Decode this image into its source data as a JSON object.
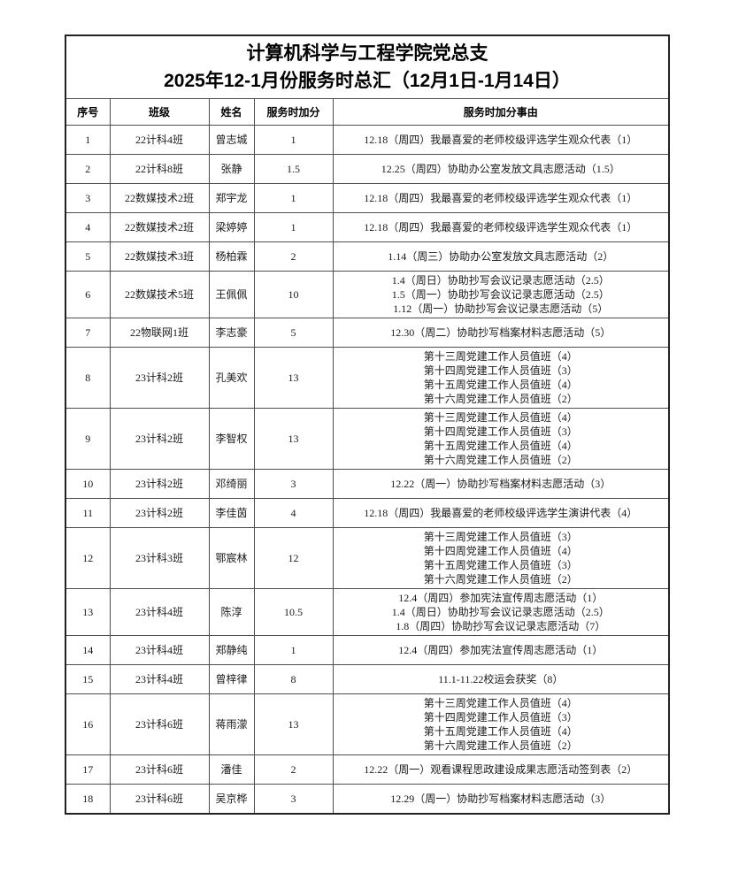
{
  "page": {
    "title_line1": "计算机科学与工程学院党总支",
    "title_line2": "2025年12-1月份服务时总汇（12月1日-1月14日）"
  },
  "table": {
    "headers": [
      "序号",
      "班级",
      "姓名",
      "服务时加分",
      "服务时加分事由"
    ],
    "rows": [
      {
        "no": "1",
        "class": "22计科4班",
        "name": "曾志城",
        "points": "1",
        "reasons": [
          "12.18（周四）我最喜爱的老师校级评选学生观众代表（1）"
        ]
      },
      {
        "no": "2",
        "class": "22计科8班",
        "name": "张静",
        "points": "1.5",
        "reasons": [
          "12.25（周四）协助办公室发放文具志愿活动（1.5）"
        ]
      },
      {
        "no": "3",
        "class": "22数媒技术2班",
        "name": "郑宇龙",
        "points": "1",
        "reasons": [
          "12.18（周四）我最喜爱的老师校级评选学生观众代表（1）"
        ]
      },
      {
        "no": "4",
        "class": "22数媒技术2班",
        "name": "梁婷婷",
        "points": "1",
        "reasons": [
          "12.18（周四）我最喜爱的老师校级评选学生观众代表（1）"
        ]
      },
      {
        "no": "5",
        "class": "22数媒技术3班",
        "name": "杨柏霖",
        "points": "2",
        "reasons": [
          "1.14（周三）协助办公室发放文具志愿活动（2）"
        ]
      },
      {
        "no": "6",
        "class": "22数媒技术5班",
        "name": "王佩佩",
        "points": "10",
        "reasons": [
          "1.4（周日）协助抄写会议记录志愿活动（2.5）",
          "1.5（周一）协助抄写会议记录志愿活动（2.5）",
          "1.12（周一）协助抄写会议记录志愿活动（5）"
        ]
      },
      {
        "no": "7",
        "class": "22物联网1班",
        "name": "李志豪",
        "points": "5",
        "reasons": [
          "12.30（周二）协助抄写档案材料志愿活动（5）"
        ]
      },
      {
        "no": "8",
        "class": "23计科2班",
        "name": "孔美欢",
        "points": "13",
        "reasons": [
          "第十三周党建工作人员值班（4）",
          "第十四周党建工作人员值班（3）",
          "第十五周党建工作人员值班（4）",
          "第十六周党建工作人员值班（2）"
        ]
      },
      {
        "no": "9",
        "class": "23计科2班",
        "name": "李智权",
        "points": "13",
        "reasons": [
          "第十三周党建工作人员值班（4）",
          "第十四周党建工作人员值班（3）",
          "第十五周党建工作人员值班（4）",
          "第十六周党建工作人员值班（2）"
        ]
      },
      {
        "no": "10",
        "class": "23计科2班",
        "name": "邓绮丽",
        "points": "3",
        "reasons": [
          "12.22（周一）协助抄写档案材料志愿活动（3）"
        ]
      },
      {
        "no": "11",
        "class": "23计科2班",
        "name": "李佳茵",
        "points": "4",
        "reasons": [
          "12.18（周四）我最喜爱的老师校级评选学生演讲代表（4）"
        ]
      },
      {
        "no": "12",
        "class": "23计科3班",
        "name": "鄂宸林",
        "points": "12",
        "reasons": [
          "第十三周党建工作人员值班（3）",
          "第十四周党建工作人员值班（4）",
          "第十五周党建工作人员值班（3）",
          "第十六周党建工作人员值班（2）"
        ]
      },
      {
        "no": "13",
        "class": "23计科4班",
        "name": "陈淳",
        "points": "10.5",
        "reasons": [
          "12.4（周四）参加宪法宣传周志愿活动（1）",
          "1.4（周日）协助抄写会议记录志愿活动（2.5）",
          "1.8（周四）协助抄写会议记录志愿活动（7）"
        ]
      },
      {
        "no": "14",
        "class": "23计科4班",
        "name": "郑静纯",
        "points": "1",
        "reasons": [
          "12.4（周四）参加宪法宣传周志愿活动（1）"
        ]
      },
      {
        "no": "15",
        "class": "23计科4班",
        "name": "曾梓律",
        "points": "8",
        "reasons": [
          "11.1-11.22校运会获奖（8）"
        ]
      },
      {
        "no": "16",
        "class": "23计科6班",
        "name": "蒋雨濛",
        "points": "13",
        "reasons": [
          "第十三周党建工作人员值班（4）",
          "第十四周党建工作人员值班（3）",
          "第十五周党建工作人员值班（4）",
          "第十六周党建工作人员值班（2）"
        ]
      },
      {
        "no": "17",
        "class": "23计科6班",
        "name": "潘佳",
        "points": "2",
        "reasons": [
          "12.22（周一）观看课程思政建设成果志愿活动签到表（2）"
        ]
      },
      {
        "no": "18",
        "class": "23计科6班",
        "name": "吴京桦",
        "points": "3",
        "reasons": [
          "12.29（周一）协助抄写档案材料志愿活动（3）"
        ]
      }
    ]
  }
}
